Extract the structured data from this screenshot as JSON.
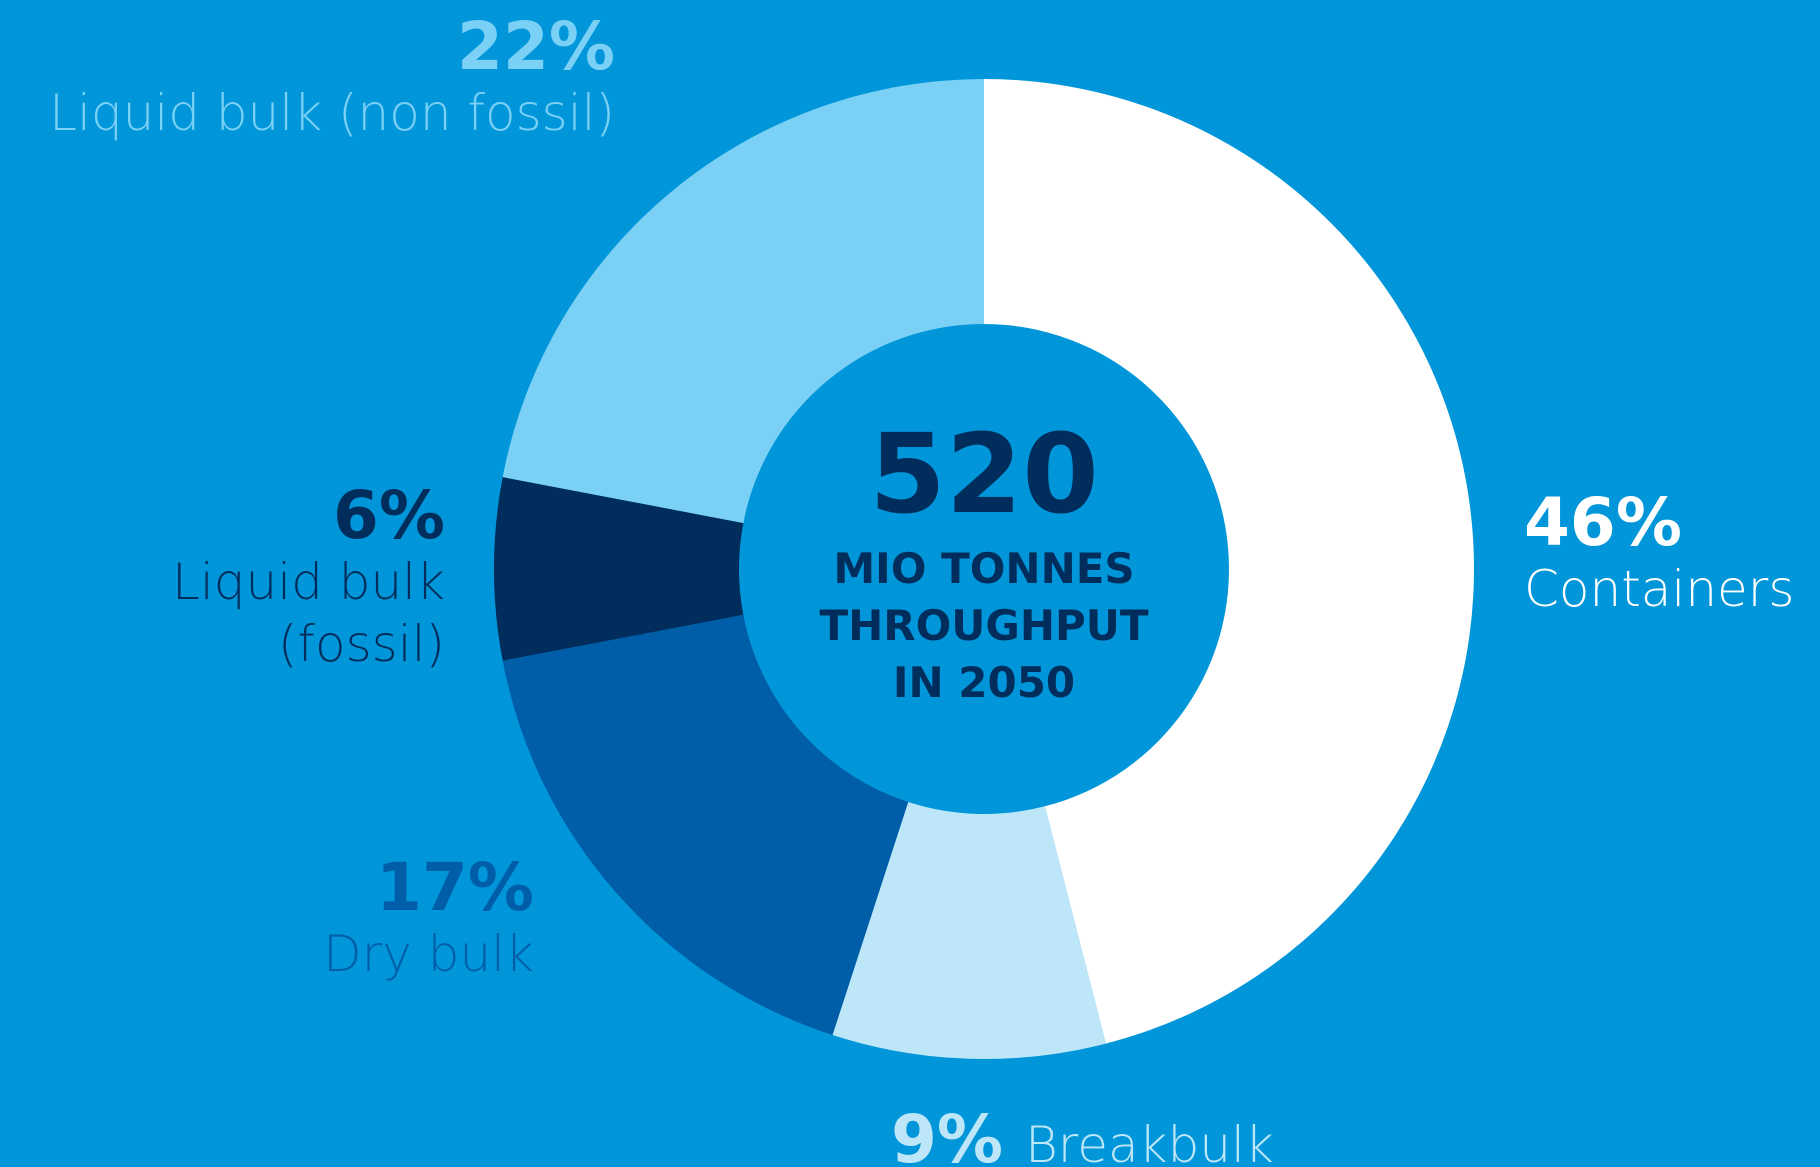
{
  "chart_data": {
    "type": "donut",
    "categories": [
      "Containers",
      "Breakbulk",
      "Dry bulk",
      "Liquid bulk (fossil)",
      "Liquid bulk (non fossil)"
    ],
    "values": [
      46,
      9,
      17,
      6,
      22
    ],
    "value_labels": [
      "46%",
      "9%",
      "17%",
      "6%",
      "22%"
    ],
    "colors": [
      "#ffffff",
      "#bde6f8",
      "#005ea8",
      "#002d5c",
      "#7ad1f5"
    ],
    "center_value": 520,
    "center_label": [
      "MIO TONNES",
      "THROUGHPUT",
      "IN 2050"
    ]
  }
}
